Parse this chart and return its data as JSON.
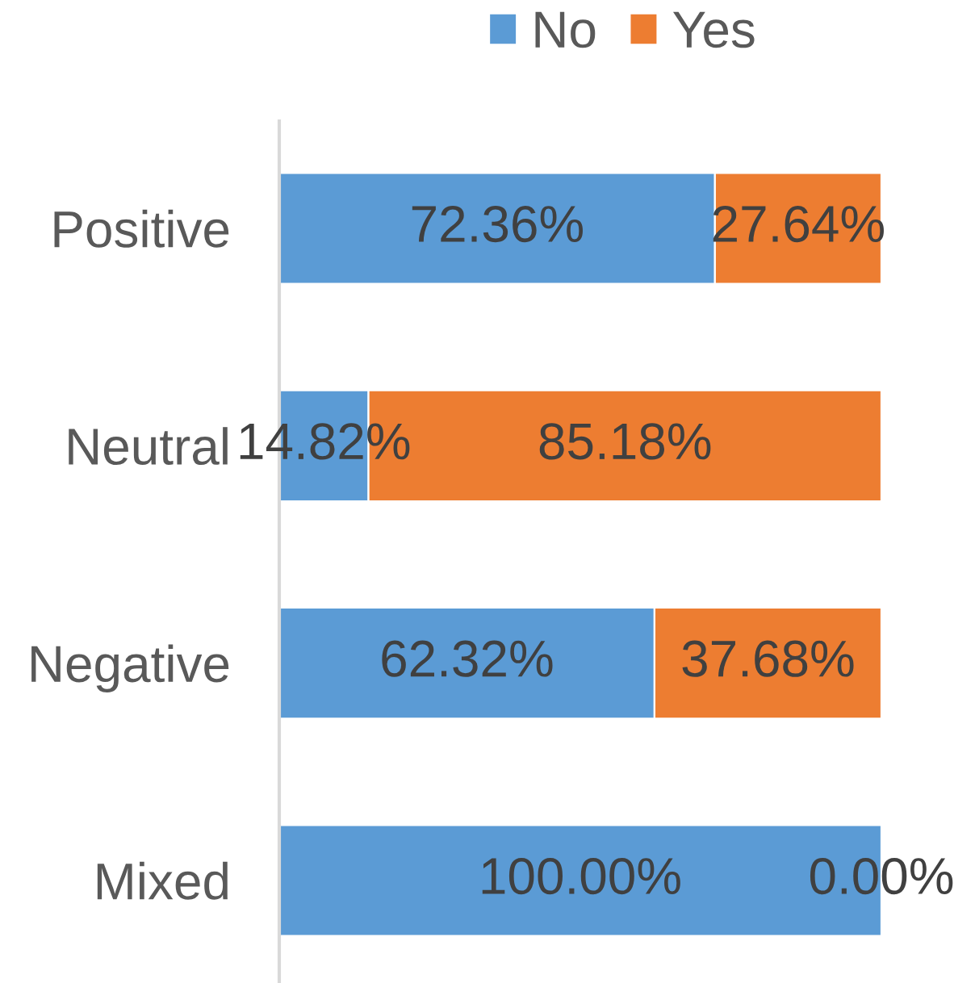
{
  "chart_data": {
    "type": "bar",
    "orientation": "horizontal",
    "stacked": true,
    "legend": "top",
    "categories": [
      "Positive",
      "Neutral",
      "Negative",
      "Mixed"
    ],
    "series": [
      {
        "name": "No",
        "color": "#5b9bd5",
        "values": [
          72.36,
          14.82,
          62.32,
          100.0
        ],
        "value_labels": [
          "72.36%",
          "14.82%",
          "62.32%",
          "100.00%"
        ]
      },
      {
        "name": "Yes",
        "color": "#ed7d31",
        "values": [
          27.64,
          85.18,
          37.68,
          0.0
        ],
        "value_labels": [
          "27.64%",
          "85.18%",
          "37.68%",
          "0.00%"
        ]
      }
    ]
  }
}
